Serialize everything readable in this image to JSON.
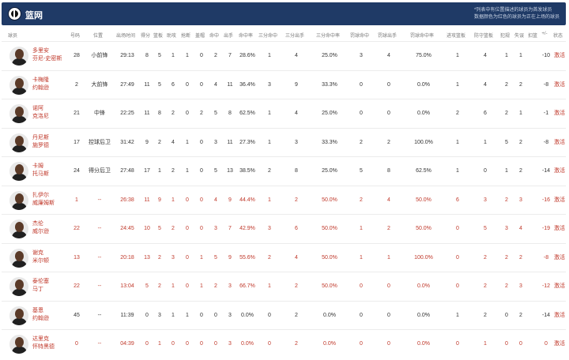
{
  "team": {
    "name": "篮网",
    "note_line1": "*列表中有位置描述的球员为首发球员",
    "note_line2": "数据颜色为红色的球员为正在上场的球员"
  },
  "columns": [
    "球员",
    "号码",
    "位置",
    "出场时间",
    "得分",
    "篮板",
    "助攻",
    "抢断",
    "盖帽",
    "命中",
    "出手",
    "命中率",
    "三分命中",
    "三分出手",
    "三分命中率",
    "罚球命中",
    "罚球出手",
    "罚球命中率",
    "进攻篮板",
    "防守篮板",
    "犯规",
    "失误",
    "扣篮",
    "+/-",
    "状态"
  ],
  "players": [
    {
      "name1": "多里安",
      "name2": "芬尼-史密斯",
      "num": "28",
      "pos": "小前锋",
      "min": "29:13",
      "pts": "8",
      "reb": "5",
      "ast": "1",
      "stl": "1",
      "blk": "0",
      "fgm": "2",
      "fga": "7",
      "fgp": "28.6%",
      "tpm": "1",
      "tpa": "4",
      "tpp": "25.0%",
      "ftm": "3",
      "fta": "4",
      "ftp": "75.0%",
      "oreb": "1",
      "dreb": "4",
      "pf": "1",
      "to": "1",
      "dunk": "",
      "pm": "-10",
      "status": "激活",
      "bench": false
    },
    {
      "name1": "卡梅隆",
      "name2": "约翰逊",
      "num": "2",
      "pos": "大前锋",
      "min": "27:49",
      "pts": "11",
      "reb": "5",
      "ast": "6",
      "stl": "0",
      "blk": "0",
      "fgm": "4",
      "fga": "11",
      "fgp": "36.4%",
      "tpm": "3",
      "tpa": "9",
      "tpp": "33.3%",
      "ftm": "0",
      "fta": "0",
      "ftp": "0.0%",
      "oreb": "1",
      "dreb": "4",
      "pf": "2",
      "to": "2",
      "dunk": "",
      "pm": "-8",
      "status": "激活",
      "bench": false
    },
    {
      "name1": "诺阿",
      "name2": "克洛尼",
      "num": "21",
      "pos": "中锋",
      "min": "22:25",
      "pts": "11",
      "reb": "8",
      "ast": "2",
      "stl": "0",
      "blk": "2",
      "fgm": "5",
      "fga": "8",
      "fgp": "62.5%",
      "tpm": "1",
      "tpa": "4",
      "tpp": "25.0%",
      "ftm": "0",
      "fta": "0",
      "ftp": "0.0%",
      "oreb": "2",
      "dreb": "6",
      "pf": "2",
      "to": "1",
      "dunk": "",
      "pm": "-1",
      "status": "激活",
      "bench": false
    },
    {
      "name1": "丹尼斯",
      "name2": "施罗德",
      "num": "17",
      "pos": "控球后卫",
      "min": "31:42",
      "pts": "9",
      "reb": "2",
      "ast": "4",
      "stl": "1",
      "blk": "0",
      "fgm": "3",
      "fga": "11",
      "fgp": "27.3%",
      "tpm": "1",
      "tpa": "3",
      "tpp": "33.3%",
      "ftm": "2",
      "fta": "2",
      "ftp": "100.0%",
      "oreb": "1",
      "dreb": "1",
      "pf": "5",
      "to": "2",
      "dunk": "",
      "pm": "-8",
      "status": "激活",
      "bench": false
    },
    {
      "name1": "卡姆",
      "name2": "托马斯",
      "num": "24",
      "pos": "得分后卫",
      "min": "27:48",
      "pts": "17",
      "reb": "1",
      "ast": "2",
      "stl": "1",
      "blk": "0",
      "fgm": "5",
      "fga": "13",
      "fgp": "38.5%",
      "tpm": "2",
      "tpa": "8",
      "tpp": "25.0%",
      "ftm": "5",
      "fta": "8",
      "ftp": "62.5%",
      "oreb": "1",
      "dreb": "0",
      "pf": "1",
      "to": "2",
      "dunk": "",
      "pm": "-14",
      "status": "激活",
      "bench": false
    },
    {
      "name1": "扎伊尔",
      "name2": "威廉姆斯",
      "num": "1",
      "pos": "--",
      "min": "26:38",
      "pts": "11",
      "reb": "9",
      "ast": "1",
      "stl": "0",
      "blk": "0",
      "fgm": "4",
      "fga": "9",
      "fgp": "44.4%",
      "tpm": "1",
      "tpa": "2",
      "tpp": "50.0%",
      "ftm": "2",
      "fta": "4",
      "ftp": "50.0%",
      "oreb": "6",
      "dreb": "3",
      "pf": "2",
      "to": "3",
      "dunk": "",
      "pm": "-16",
      "status": "激活",
      "bench": true
    },
    {
      "name1": "杰伦",
      "name2": "威尔逊",
      "num": "22",
      "pos": "--",
      "min": "24:45",
      "pts": "10",
      "reb": "5",
      "ast": "2",
      "stl": "0",
      "blk": "0",
      "fgm": "3",
      "fga": "7",
      "fgp": "42.9%",
      "tpm": "3",
      "tpa": "6",
      "tpp": "50.0%",
      "ftm": "1",
      "fta": "2",
      "ftp": "50.0%",
      "oreb": "0",
      "dreb": "5",
      "pf": "3",
      "to": "4",
      "dunk": "",
      "pm": "-19",
      "status": "激活",
      "bench": true
    },
    {
      "name1": "谢克",
      "name2": "米尔顿",
      "num": "13",
      "pos": "--",
      "min": "20:18",
      "pts": "13",
      "reb": "2",
      "ast": "3",
      "stl": "0",
      "blk": "1",
      "fgm": "5",
      "fga": "9",
      "fgp": "55.6%",
      "tpm": "2",
      "tpa": "4",
      "tpp": "50.0%",
      "ftm": "1",
      "fta": "1",
      "ftp": "100.0%",
      "oreb": "0",
      "dreb": "2",
      "pf": "2",
      "to": "2",
      "dunk": "",
      "pm": "-8",
      "status": "激活",
      "bench": true
    },
    {
      "name1": "泰伦塞",
      "name2": "马丁",
      "num": "22",
      "pos": "--",
      "min": "13:04",
      "pts": "5",
      "reb": "2",
      "ast": "1",
      "stl": "0",
      "blk": "1",
      "fgm": "2",
      "fga": "3",
      "fgp": "66.7%",
      "tpm": "1",
      "tpa": "2",
      "tpp": "50.0%",
      "ftm": "0",
      "fta": "0",
      "ftp": "0.0%",
      "oreb": "0",
      "dreb": "2",
      "pf": "2",
      "to": "3",
      "dunk": "",
      "pm": "-12",
      "status": "激活",
      "bench": true
    },
    {
      "name1": "基恩",
      "name2": "约翰逊",
      "num": "45",
      "pos": "--",
      "min": "11:39",
      "pts": "0",
      "reb": "3",
      "ast": "1",
      "stl": "1",
      "blk": "0",
      "fgm": "0",
      "fga": "3",
      "fgp": "0.0%",
      "tpm": "0",
      "tpa": "2",
      "tpp": "0.0%",
      "ftm": "0",
      "fta": "0",
      "ftp": "0.0%",
      "oreb": "1",
      "dreb": "2",
      "pf": "0",
      "to": "2",
      "dunk": "",
      "pm": "-14",
      "status": "激活",
      "bench": false
    },
    {
      "name1": "达里克",
      "name2": "怀特黑德",
      "num": "0",
      "pos": "--",
      "min": "04:39",
      "pts": "0",
      "reb": "1",
      "ast": "0",
      "stl": "0",
      "blk": "0",
      "fgm": "0",
      "fga": "3",
      "fgp": "0.0%",
      "tpm": "0",
      "tpa": "2",
      "tpp": "0.0%",
      "ftm": "0",
      "fta": "0",
      "ftp": "0.0%",
      "oreb": "0",
      "dreb": "1",
      "pf": "0",
      "to": "0",
      "dunk": "",
      "pm": "0",
      "status": "激活",
      "bench": true
    }
  ]
}
